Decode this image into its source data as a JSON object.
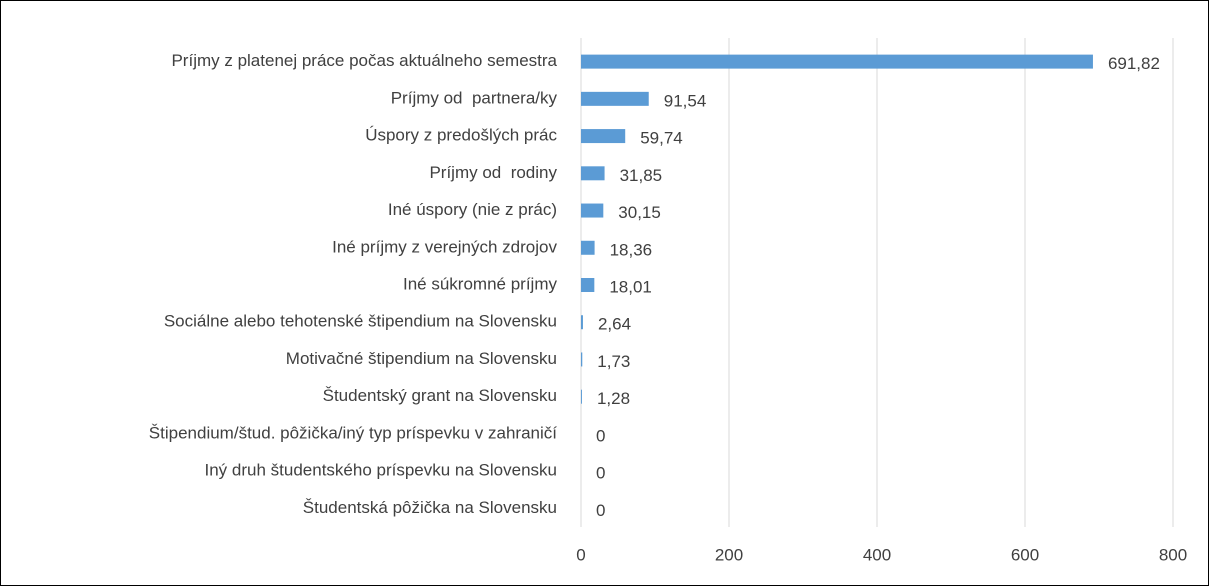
{
  "chart_data": {
    "type": "barh",
    "categories": [
      "Príjmy z platenej práce počas aktuálneho semestra",
      "Príjmy od  partnera/ky",
      "Úspory z predošlých prác",
      "Príjmy od  rodiny",
      "Iné úspory (nie z prác)",
      "Iné príjmy z verejných zdrojov",
      "Iné súkromné príjmy",
      "Sociálne alebo tehotenské štipendium na Slovensku",
      "Motivačné štipendium na Slovensku",
      "Študentský grant na Slovensku",
      "Štipendium/štud. pôžička/iný typ príspevku v zahraničí",
      "Iný druh študentského príspevku na Slovensku",
      "Študentská pôžička na Slovensku"
    ],
    "values": [
      691.82,
      91.54,
      59.74,
      31.85,
      30.15,
      18.36,
      18.01,
      2.64,
      1.73,
      1.28,
      0,
      0,
      0
    ],
    "value_labels": [
      "691,82",
      "91,54",
      "59,74",
      "31,85",
      "30,15",
      "18,36",
      "18,01",
      "2,64",
      "1,73",
      "1,28",
      "0",
      "0",
      "0"
    ],
    "color": "#5b9bd5",
    "xlim": [
      0,
      800
    ],
    "xticks": [
      0,
      200,
      400,
      600,
      800
    ],
    "grid": true
  }
}
